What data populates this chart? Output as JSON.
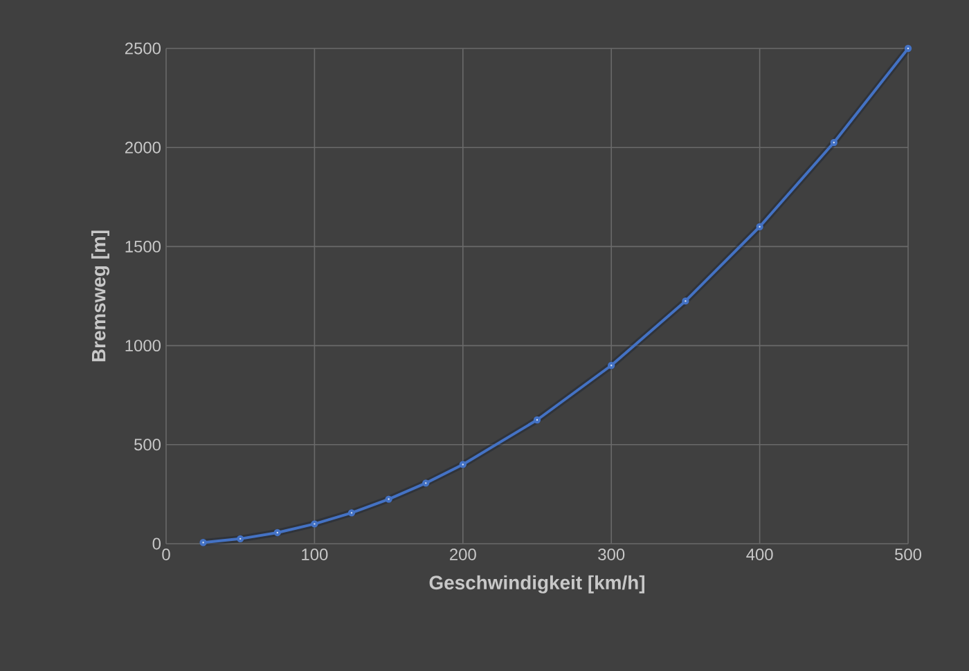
{
  "chart_data": {
    "type": "line",
    "xlabel": "Geschwindigkeit  [km/h]",
    "ylabel": "Bremsweg [m]",
    "x": [
      25,
      50,
      75,
      100,
      125,
      150,
      175,
      200,
      250,
      300,
      350,
      400,
      450,
      500
    ],
    "series": [
      {
        "color": "#4472c4",
        "values": [
          6,
          25,
          56,
          100,
          156,
          225,
          306,
          400,
          625,
          900,
          1225,
          1600,
          2025,
          2500
        ]
      }
    ],
    "xlim": [
      0,
      500
    ],
    "xticks": [
      0,
      100,
      200,
      300,
      400,
      500
    ],
    "ylim": [
      0,
      2500
    ],
    "yticks": [
      0,
      500,
      1000,
      1500,
      2000,
      2500
    ],
    "grid": true,
    "marker": "circle",
    "line_style": "solid"
  }
}
